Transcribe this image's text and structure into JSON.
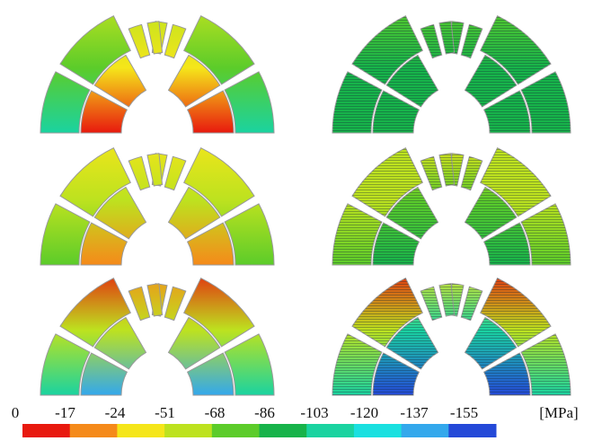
{
  "colorbar": {
    "ticks": [
      0,
      -17,
      -24,
      -51,
      -68,
      -86,
      -103,
      -120,
      -137,
      -155
    ],
    "unit": "[MPa]",
    "colors": [
      "#e8190e",
      "#f58a1a",
      "#f5e61a",
      "#bde21f",
      "#5ccc2a",
      "#17b34a",
      "#1ad3a0",
      "#1ae0e0",
      "#33a8ec",
      "#2449d8"
    ]
  }
}
